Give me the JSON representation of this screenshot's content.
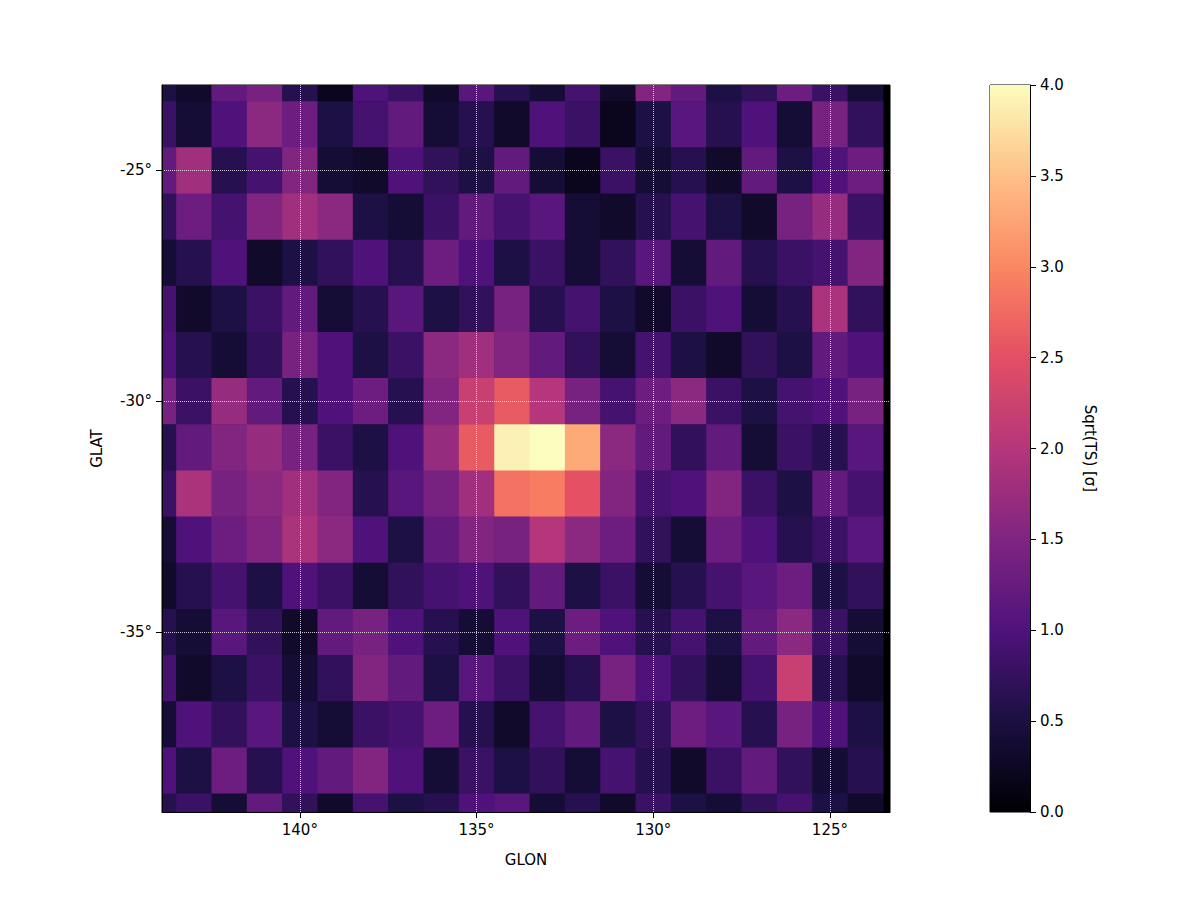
{
  "chart_data": {
    "type": "heatmap",
    "x_label": "GLON",
    "y_label": "GLAT",
    "xlim": [
      143.9,
      123.3
    ],
    "ylim": [
      -38.9,
      -23.15
    ],
    "xticks": [
      {
        "value": 140,
        "label": "140°"
      },
      {
        "value": 135,
        "label": "135°"
      },
      {
        "value": 130,
        "label": "130°"
      },
      {
        "value": 125,
        "label": "125°"
      }
    ],
    "yticks": [
      {
        "value": -25,
        "label": "-25°"
      },
      {
        "value": -30,
        "label": "-30°"
      },
      {
        "value": -35,
        "label": "-35°"
      }
    ],
    "grid": true,
    "x": [
      144,
      143,
      142,
      141,
      140,
      139,
      138,
      137,
      136,
      135,
      134,
      133,
      132,
      131,
      130,
      129,
      128,
      127,
      126,
      125,
      124
    ],
    "y": [
      -23,
      -24,
      -25,
      -26,
      -27,
      -28,
      -29,
      -30,
      -31,
      -32,
      -33,
      -34,
      -35,
      -36,
      -37,
      -38,
      -39
    ],
    "z": [
      [
        0.5,
        0.3,
        1.2,
        1.4,
        0.6,
        0.2,
        1.0,
        0.8,
        0.3,
        1.1,
        0.6,
        0.4,
        0.9,
        0.3,
        1.5,
        1.2,
        0.5,
        0.7,
        1.3,
        0.8,
        0.4
      ],
      [
        0.8,
        0.4,
        1.0,
        1.6,
        1.3,
        0.5,
        0.9,
        1.2,
        0.4,
        0.6,
        0.3,
        1.0,
        0.8,
        0.2,
        0.5,
        1.1,
        0.6,
        1.0,
        0.4,
        1.4,
        0.7
      ],
      [
        1.2,
        1.8,
        0.6,
        0.9,
        1.5,
        0.4,
        0.3,
        1.0,
        0.7,
        0.5,
        1.2,
        0.4,
        0.2,
        0.8,
        0.4,
        0.6,
        0.3,
        1.2,
        0.5,
        1.0,
        1.3
      ],
      [
        0.7,
        1.3,
        0.9,
        1.5,
        1.8,
        1.6,
        0.5,
        0.4,
        0.8,
        1.2,
        0.9,
        1.1,
        0.4,
        0.3,
        0.6,
        0.9,
        0.5,
        0.3,
        1.4,
        1.7,
        0.8
      ],
      [
        0.4,
        0.6,
        1.0,
        0.3,
        0.5,
        0.7,
        1.0,
        0.6,
        1.3,
        1.0,
        0.5,
        0.8,
        0.4,
        0.7,
        1.1,
        0.4,
        1.2,
        0.6,
        0.8,
        0.9,
        1.5
      ],
      [
        0.9,
        0.3,
        0.5,
        0.8,
        1.2,
        0.4,
        0.6,
        1.1,
        0.5,
        0.7,
        1.4,
        0.6,
        0.9,
        0.5,
        0.3,
        0.8,
        1.0,
        0.4,
        0.6,
        1.9,
        0.7
      ],
      [
        1.0,
        0.6,
        0.4,
        0.7,
        1.4,
        1.0,
        0.5,
        0.8,
        1.6,
        1.8,
        1.5,
        1.2,
        0.7,
        0.4,
        0.9,
        0.5,
        0.3,
        0.7,
        0.5,
        1.2,
        1.0
      ],
      [
        1.4,
        0.8,
        1.7,
        1.2,
        0.6,
        1.0,
        1.3,
        0.6,
        1.5,
        2.2,
        2.6,
        2.0,
        1.4,
        0.9,
        1.3,
        1.6,
        0.8,
        0.5,
        0.9,
        1.0,
        1.4
      ],
      [
        0.6,
        1.2,
        1.5,
        1.7,
        1.4,
        0.8,
        0.5,
        1.0,
        1.7,
        2.6,
        3.9,
        4.0,
        3.3,
        1.6,
        1.2,
        0.7,
        1.2,
        0.4,
        0.8,
        0.6,
        1.1
      ],
      [
        0.8,
        1.9,
        1.4,
        1.6,
        1.8,
        1.5,
        0.6,
        1.1,
        1.4,
        1.8,
        2.8,
        2.9,
        2.5,
        1.5,
        0.9,
        1.0,
        1.5,
        0.8,
        0.5,
        1.2,
        0.9
      ],
      [
        0.4,
        1.0,
        1.3,
        1.5,
        1.9,
        1.6,
        1.0,
        0.5,
        1.2,
        1.5,
        1.4,
        2.0,
        1.6,
        1.3,
        0.7,
        0.4,
        1.3,
        1.0,
        0.6,
        0.8,
        1.1
      ],
      [
        0.3,
        0.6,
        0.9,
        0.5,
        1.0,
        0.8,
        0.4,
        0.7,
        0.9,
        1.0,
        0.7,
        1.2,
        0.5,
        0.8,
        0.4,
        0.6,
        0.9,
        1.1,
        1.3,
        0.5,
        0.7
      ],
      [
        0.6,
        0.4,
        1.1,
        0.7,
        0.3,
        1.2,
        1.4,
        1.0,
        0.6,
        0.4,
        1.0,
        0.5,
        1.3,
        1.0,
        0.6,
        0.9,
        0.5,
        1.2,
        1.6,
        0.8,
        0.4
      ],
      [
        0.9,
        0.3,
        0.5,
        0.8,
        0.4,
        0.7,
        1.5,
        1.2,
        0.5,
        1.1,
        0.8,
        0.4,
        0.6,
        1.4,
        1.0,
        0.7,
        0.4,
        0.9,
        2.2,
        0.6,
        0.3
      ],
      [
        0.4,
        1.0,
        0.7,
        1.1,
        0.5,
        0.4,
        0.8,
        0.9,
        1.3,
        0.6,
        0.3,
        0.9,
        1.2,
        0.5,
        0.7,
        1.3,
        1.1,
        0.6,
        1.4,
        1.0,
        0.5
      ],
      [
        1.0,
        0.5,
        1.3,
        0.6,
        1.0,
        1.2,
        1.5,
        1.0,
        0.4,
        0.8,
        0.5,
        0.7,
        0.4,
        0.9,
        0.6,
        0.3,
        0.8,
        1.2,
        0.7,
        0.4,
        0.6
      ],
      [
        0.6,
        0.8,
        0.4,
        1.2,
        0.7,
        0.3,
        0.9,
        0.5,
        0.6,
        1.0,
        1.1,
        0.4,
        0.6,
        0.3,
        0.8,
        0.5,
        0.4,
        0.7,
        0.9,
        0.5,
        0.3
      ]
    ],
    "colorbar_label": "Sqrt(TS) [σ]",
    "colorbar_range": [
      0,
      4
    ],
    "colorbar_ticks": [
      {
        "value": 0,
        "label": "0.0"
      },
      {
        "value": 0.5,
        "label": "0.5"
      },
      {
        "value": 1,
        "label": "1.0"
      },
      {
        "value": 1.5,
        "label": "1.5"
      },
      {
        "value": 2,
        "label": "2.0"
      },
      {
        "value": 2.5,
        "label": "2.5"
      },
      {
        "value": 3,
        "label": "3.0"
      },
      {
        "value": 3.5,
        "label": "3.5"
      },
      {
        "value": 4,
        "label": "4.0"
      }
    ]
  }
}
